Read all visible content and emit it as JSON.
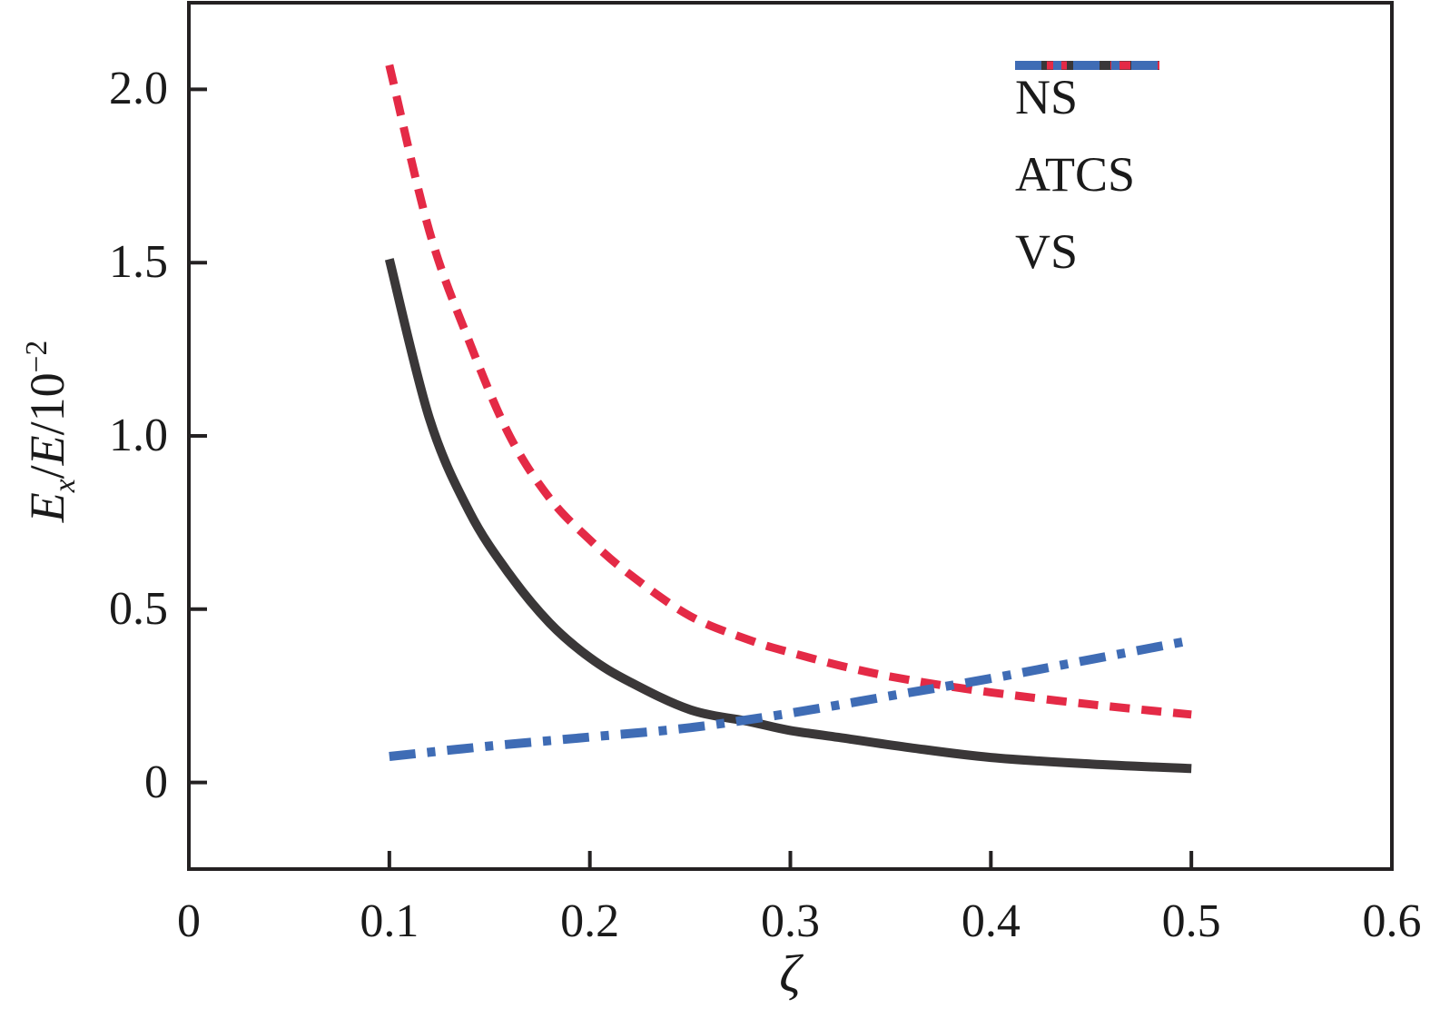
{
  "figure": {
    "background": "#ffffff",
    "frame_color": "#242122",
    "tick_color": "#242122",
    "text_color": "#1a1a1a"
  },
  "chart_data": {
    "type": "line",
    "title": "",
    "xlabel": "ζ",
    "ylabel": "E_x/E/10^-2",
    "ylabel_parts": {
      "e1": "E",
      "e1sub": "x",
      "slash1": "/",
      "e2": "E",
      "slash2": "/10",
      "sup": "−2"
    },
    "xlim": [
      0,
      0.6
    ],
    "ylim": [
      -0.25,
      2.25
    ],
    "grid": false,
    "legend_position": "upper-right",
    "x_ticks": [
      {
        "v": 0.0,
        "label": "0",
        "mark": false
      },
      {
        "v": 0.1,
        "label": "0.1",
        "mark": true
      },
      {
        "v": 0.2,
        "label": "0.2",
        "mark": true
      },
      {
        "v": 0.3,
        "label": "0.3",
        "mark": true
      },
      {
        "v": 0.4,
        "label": "0.4",
        "mark": true
      },
      {
        "v": 0.5,
        "label": "0.5",
        "mark": true
      },
      {
        "v": 0.6,
        "label": "0.6",
        "mark": false
      }
    ],
    "y_ticks": [
      {
        "v": 0.0,
        "label": "0",
        "mark": true
      },
      {
        "v": 0.5,
        "label": "0.5",
        "mark": true
      },
      {
        "v": 1.0,
        "label": "1.0",
        "mark": true
      },
      {
        "v": 1.5,
        "label": "1.5",
        "mark": true
      },
      {
        "v": 2.0,
        "label": "2.0",
        "mark": true
      }
    ],
    "series": [
      {
        "name": "NS",
        "color": "#3a3738",
        "dash": "solid",
        "x": [
          0.1,
          0.12,
          0.14,
          0.16,
          0.18,
          0.2,
          0.22,
          0.25,
          0.28,
          0.3,
          0.33,
          0.36,
          0.4,
          0.45,
          0.5
        ],
        "y": [
          1.51,
          1.05,
          0.78,
          0.6,
          0.46,
          0.36,
          0.29,
          0.21,
          0.175,
          0.15,
          0.125,
          0.1,
          0.072,
          0.053,
          0.04
        ]
      },
      {
        "name": "ATCS",
        "color": "#e42a46",
        "dash": "dashed",
        "x": [
          0.1,
          0.12,
          0.14,
          0.16,
          0.18,
          0.2,
          0.22,
          0.25,
          0.28,
          0.3,
          0.33,
          0.36,
          0.4,
          0.45,
          0.5
        ],
        "y": [
          2.07,
          1.59,
          1.27,
          1.0,
          0.82,
          0.7,
          0.6,
          0.48,
          0.41,
          0.375,
          0.33,
          0.295,
          0.26,
          0.225,
          0.196
        ]
      },
      {
        "name": "VS",
        "color": "#3f6cb5",
        "dash": "dashdot",
        "x": [
          0.1,
          0.15,
          0.2,
          0.25,
          0.3,
          0.35,
          0.4,
          0.45,
          0.5
        ],
        "y": [
          0.075,
          0.105,
          0.131,
          0.158,
          0.2,
          0.25,
          0.3,
          0.355,
          0.41
        ]
      }
    ]
  },
  "legend": {
    "items": [
      {
        "label": "NS"
      },
      {
        "label": "ATCS"
      },
      {
        "label": "VS"
      }
    ]
  }
}
